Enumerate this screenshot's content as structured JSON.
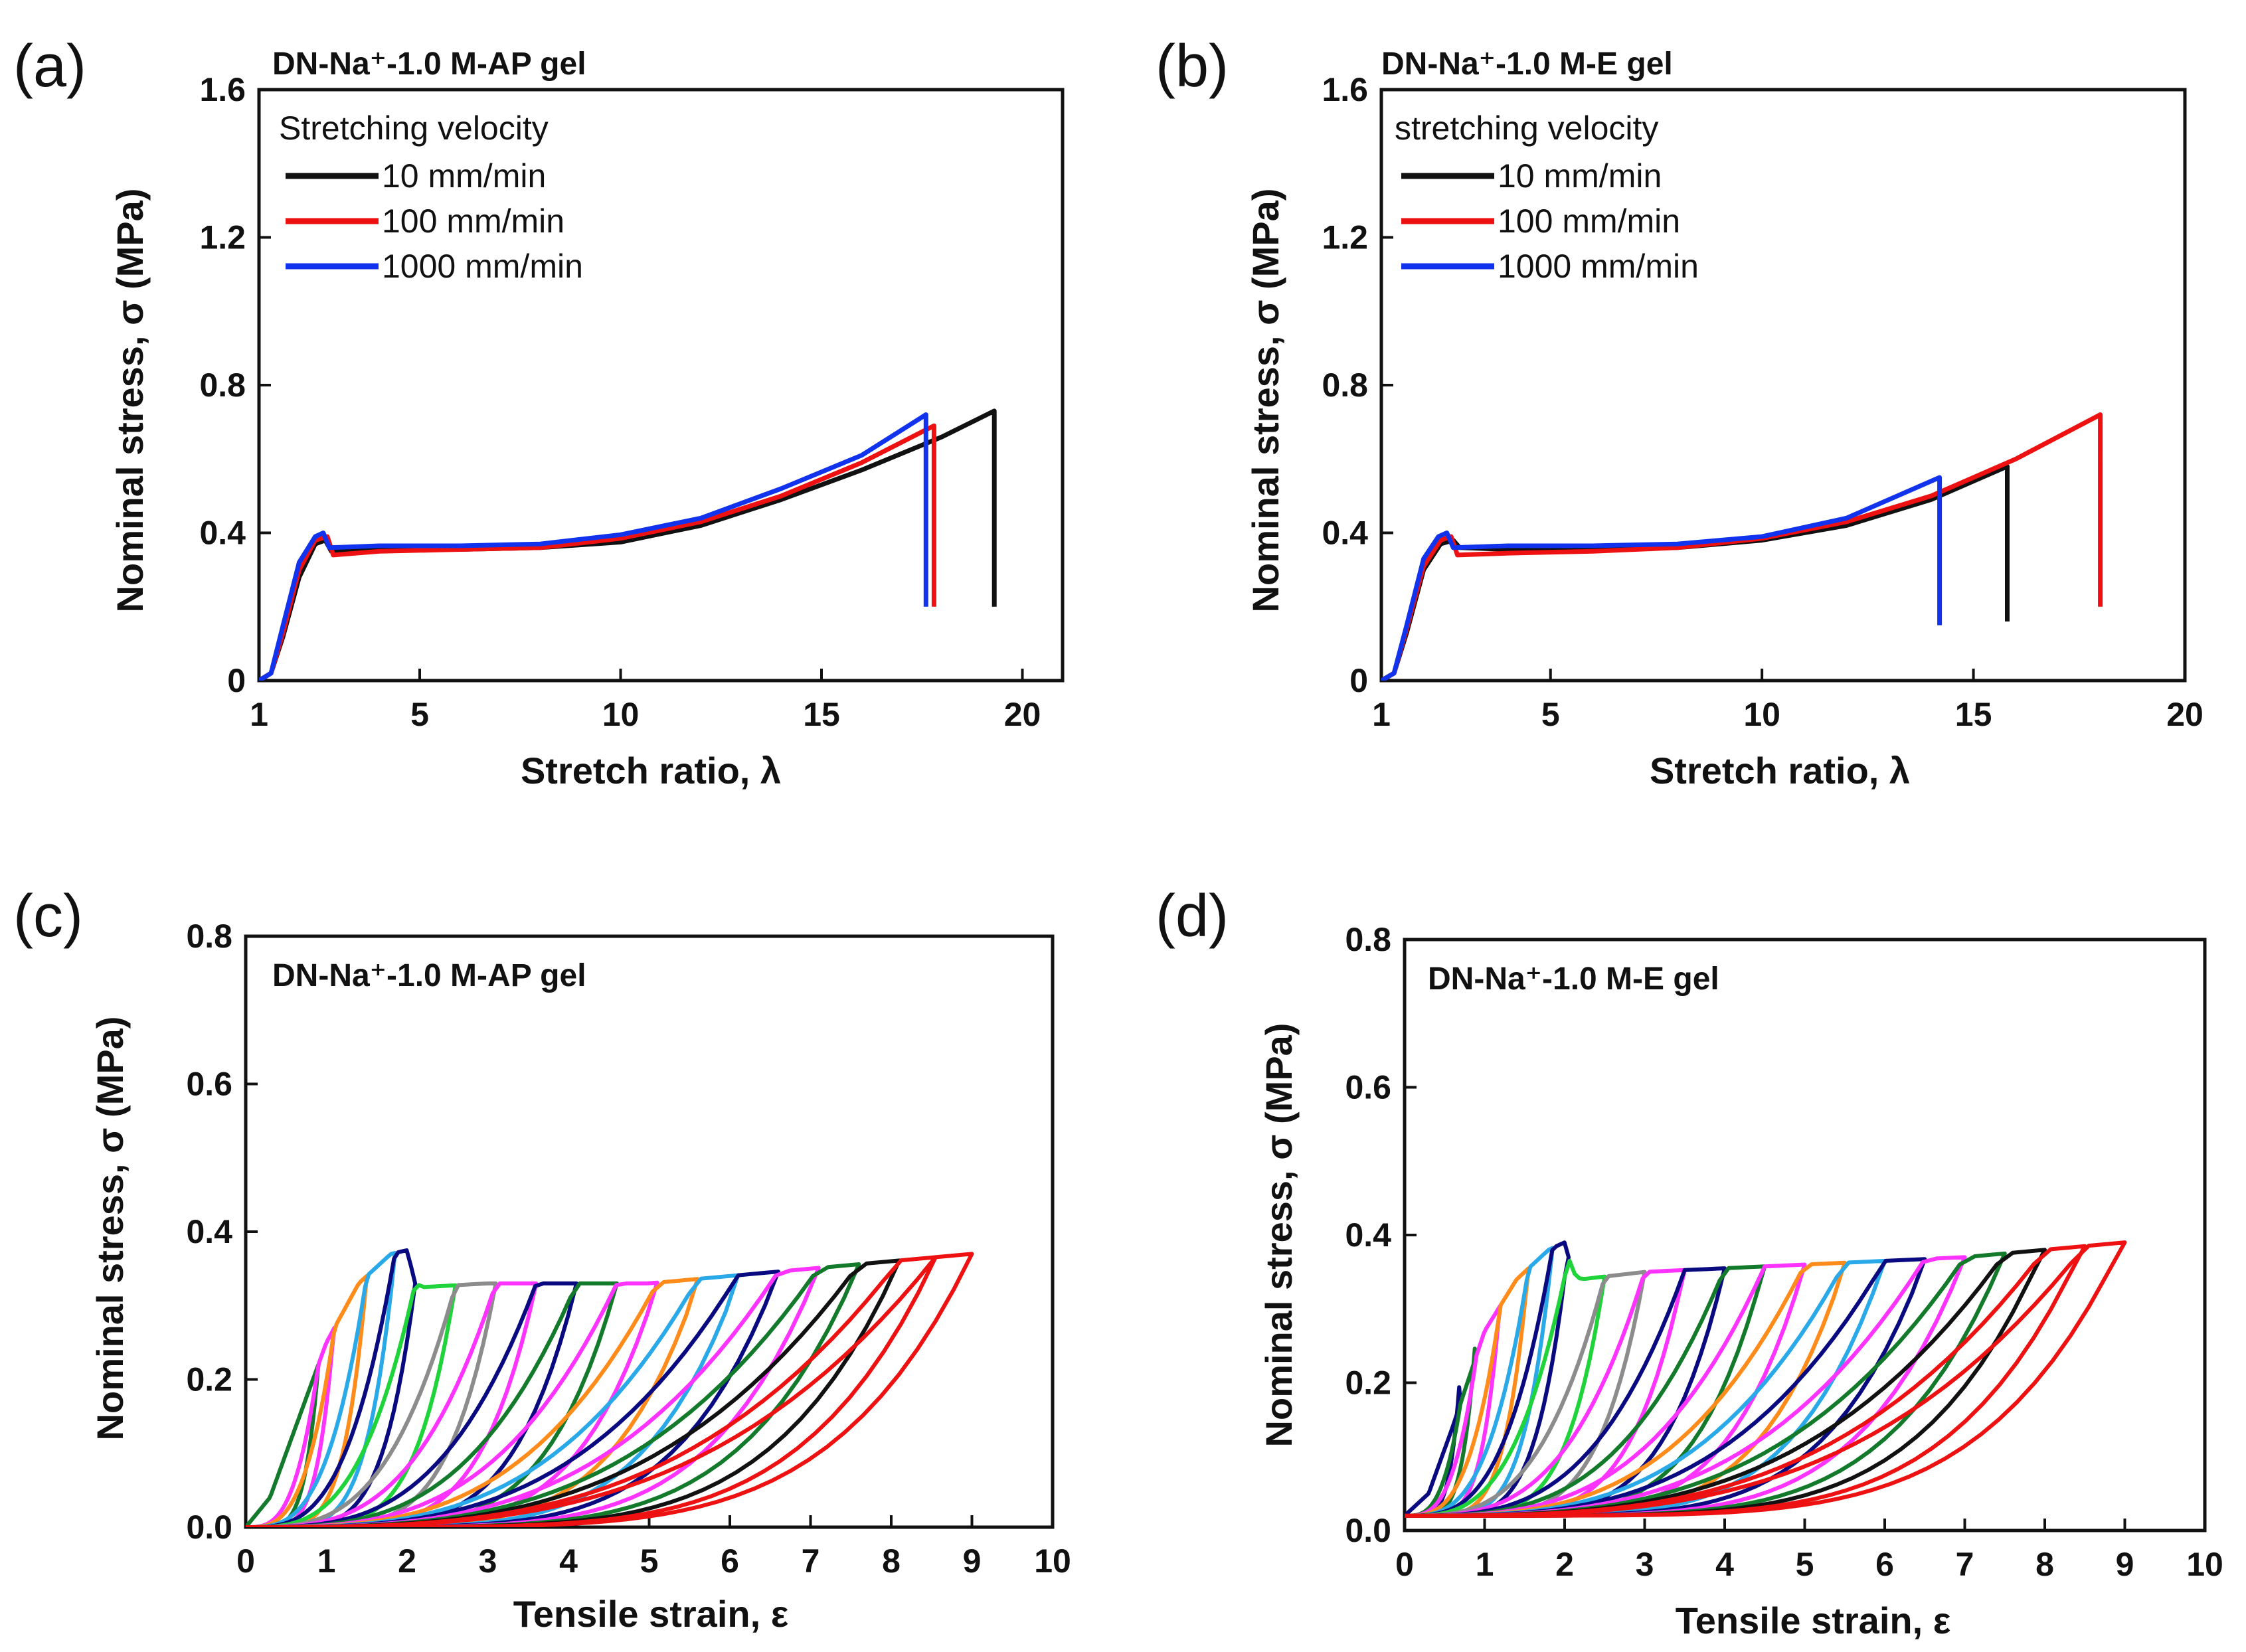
{
  "colors": {
    "black": "#111111",
    "red": "#ee1111",
    "blue": "#1133ee",
    "navy": "#0a0a80",
    "green": "#1fd33a",
    "gray": "#8c8c8c",
    "orange": "#ff8c1a",
    "skyblue": "#29a9e8",
    "magenta": "#ff33ff",
    "darkgreen": "#127a2a"
  },
  "chart_data": [
    {
      "panel": "(a)",
      "type": "line",
      "title": "DN-Na⁺-1.0 M-AP gel",
      "xlabel": "Stretch ratio, λ",
      "ylabel": "Nominal stress, σ (MPa)",
      "xlim": [
        1,
        21
      ],
      "ylim": [
        0,
        1.6
      ],
      "xticks": [
        1,
        5,
        10,
        15,
        20
      ],
      "xtick_labels": [
        "1",
        "5",
        "10",
        "15",
        "20"
      ],
      "yticks": [
        0,
        0.4,
        0.8,
        1.2,
        1.6
      ],
      "ytick_labels": [
        "0",
        "0.4",
        "0.8",
        "1.2",
        "1.6"
      ],
      "legend_title": "Stretching velocity",
      "legend_position": "top-left",
      "series": [
        {
          "name": "10 mm/min",
          "color": "black",
          "x": [
            1,
            1.3,
            1.6,
            2.0,
            2.4,
            2.65,
            2.8,
            4,
            6,
            8,
            10,
            12,
            14,
            16,
            18,
            19.3,
            19.3
          ],
          "y": [
            0,
            0.02,
            0.12,
            0.28,
            0.37,
            0.38,
            0.35,
            0.355,
            0.355,
            0.36,
            0.375,
            0.42,
            0.49,
            0.57,
            0.66,
            0.73,
            0.2
          ]
        },
        {
          "name": "100 mm/min",
          "color": "red",
          "x": [
            1,
            1.3,
            1.6,
            2.0,
            2.4,
            2.7,
            2.85,
            4,
            6,
            8,
            10,
            12,
            14,
            16,
            17.8,
            17.8
          ],
          "y": [
            0,
            0.02,
            0.13,
            0.3,
            0.38,
            0.39,
            0.34,
            0.35,
            0.355,
            0.36,
            0.385,
            0.43,
            0.5,
            0.59,
            0.69,
            0.2
          ]
        },
        {
          "name": "1000 mm/min",
          "color": "blue",
          "x": [
            1,
            1.3,
            1.6,
            2.0,
            2.4,
            2.6,
            2.75,
            4,
            6,
            8,
            10,
            12,
            14,
            16,
            17.6,
            17.6
          ],
          "y": [
            0,
            0.02,
            0.15,
            0.32,
            0.39,
            0.4,
            0.36,
            0.365,
            0.365,
            0.37,
            0.395,
            0.44,
            0.52,
            0.61,
            0.72,
            0.2
          ]
        }
      ]
    },
    {
      "panel": "(b)",
      "type": "line",
      "title": "DN-Na⁺-1.0 M-E gel",
      "xlabel": "Stretch ratio, λ",
      "ylabel": "Nominal stress, σ (MPa)",
      "xlim": [
        1,
        20
      ],
      "ylim": [
        0,
        1.6
      ],
      "xticks": [
        1,
        5,
        10,
        15,
        20
      ],
      "xtick_labels": [
        "1",
        "5",
        "10",
        "15",
        "20"
      ],
      "yticks": [
        0,
        0.4,
        0.8,
        1.2,
        1.6
      ],
      "ytick_labels": [
        "0",
        "0.4",
        "0.8",
        "1.2",
        "1.6"
      ],
      "legend_title": "stretching velocity",
      "legend_position": "top-left",
      "series": [
        {
          "name": "10 mm/min",
          "color": "black",
          "x": [
            1,
            1.3,
            1.6,
            2.0,
            2.4,
            2.7,
            2.85,
            4,
            6,
            8,
            10,
            12,
            14,
            15.8,
            15.8
          ],
          "y": [
            0,
            0.02,
            0.13,
            0.3,
            0.37,
            0.38,
            0.36,
            0.355,
            0.355,
            0.36,
            0.38,
            0.42,
            0.49,
            0.58,
            0.16
          ]
        },
        {
          "name": "100 mm/min",
          "color": "red",
          "x": [
            1,
            1.3,
            1.6,
            2.0,
            2.4,
            2.65,
            2.8,
            4,
            6,
            8,
            10,
            12,
            14,
            16,
            18,
            18
          ],
          "y": [
            0,
            0.02,
            0.14,
            0.31,
            0.38,
            0.39,
            0.34,
            0.345,
            0.35,
            0.36,
            0.385,
            0.43,
            0.5,
            0.6,
            0.72,
            0.2
          ]
        },
        {
          "name": "1000 mm/min",
          "color": "blue",
          "x": [
            1,
            1.3,
            1.6,
            2.0,
            2.35,
            2.55,
            2.7,
            4,
            6,
            8,
            10,
            12,
            14.2,
            14.2
          ],
          "y": [
            0,
            0.02,
            0.15,
            0.33,
            0.39,
            0.4,
            0.36,
            0.365,
            0.365,
            0.37,
            0.39,
            0.44,
            0.55,
            0.15
          ]
        }
      ]
    },
    {
      "panel": "(c)",
      "type": "line",
      "title": "DN-Na⁺-1.0 M-AP gel",
      "xlabel": "Tensile strain, ε",
      "ylabel": "Nominal stress, σ (MPa)",
      "xlim": [
        0,
        10
      ],
      "ylim": [
        0,
        0.8
      ],
      "xticks": [
        0,
        1,
        2,
        3,
        4,
        5,
        6,
        7,
        8,
        9,
        10
      ],
      "xtick_labels": [
        "0",
        "1",
        "2",
        "3",
        "4",
        "5",
        "6",
        "7",
        "8",
        "9",
        "10"
      ],
      "yticks": [
        0,
        0.2,
        0.4,
        0.6,
        0.8
      ],
      "ytick_labels": [
        "0.0",
        "0.2",
        "0.4",
        "0.6",
        "0.8"
      ],
      "description_series": "cyclic loading-unloading at increasing maximum strain",
      "loading_envelope": {
        "x": [
          0,
          0.3,
          0.6,
          1.0,
          1.4,
          1.8,
          2.0,
          2.1,
          2.2,
          3,
          4,
          5,
          6,
          7,
          8,
          9
        ],
        "y": [
          0,
          0.04,
          0.13,
          0.25,
          0.33,
          0.37,
          0.375,
          0.33,
          0.325,
          0.33,
          0.33,
          0.33,
          0.34,
          0.35,
          0.36,
          0.37
        ]
      },
      "cycles": [
        {
          "max_strain": 0.9,
          "max_stress": 0.22,
          "color": "darkgreen"
        },
        {
          "max_strain": 1.1,
          "max_stress": 0.28,
          "color": "magenta"
        },
        {
          "max_strain": 1.5,
          "max_stress": 0.34,
          "color": "orange"
        },
        {
          "max_strain": 1.85,
          "max_stress": 0.37,
          "color": "skyblue"
        },
        {
          "max_strain": 2.1,
          "max_stress": 0.33,
          "color": "navy"
        },
        {
          "max_strain": 2.6,
          "max_stress": 0.33,
          "color": "green"
        },
        {
          "max_strain": 3.1,
          "max_stress": 0.33,
          "color": "gray"
        },
        {
          "max_strain": 3.6,
          "max_stress": 0.33,
          "color": "magenta"
        },
        {
          "max_strain": 4.1,
          "max_stress": 0.33,
          "color": "navy"
        },
        {
          "max_strain": 4.6,
          "max_stress": 0.33,
          "color": "darkgreen"
        },
        {
          "max_strain": 5.1,
          "max_stress": 0.33,
          "color": "magenta"
        },
        {
          "max_strain": 5.6,
          "max_stress": 0.33,
          "color": "orange"
        },
        {
          "max_strain": 6.1,
          "max_stress": 0.335,
          "color": "skyblue"
        },
        {
          "max_strain": 6.6,
          "max_stress": 0.345,
          "color": "navy"
        },
        {
          "max_strain": 7.1,
          "max_stress": 0.35,
          "color": "magenta"
        },
        {
          "max_strain": 7.6,
          "max_stress": 0.355,
          "color": "darkgreen"
        },
        {
          "max_strain": 8.1,
          "max_stress": 0.36,
          "color": "black"
        },
        {
          "max_strain": 8.55,
          "max_stress": 0.365,
          "color": "red"
        },
        {
          "max_strain": 9.0,
          "max_stress": 0.37,
          "color": "red"
        }
      ]
    },
    {
      "panel": "(d)",
      "type": "line",
      "title": "DN-Na⁺-1.0 M-E gel",
      "xlabel": "Tensile strain, ε",
      "ylabel": "Nominal stress, σ (MPa)",
      "xlim": [
        0,
        10
      ],
      "ylim": [
        0,
        0.8
      ],
      "xticks": [
        0,
        1,
        2,
        3,
        4,
        5,
        6,
        7,
        8,
        9,
        10
      ],
      "xtick_labels": [
        "0",
        "1",
        "2",
        "3",
        "4",
        "5",
        "6",
        "7",
        "8",
        "9",
        "10"
      ],
      "yticks": [
        0,
        0.2,
        0.4,
        0.6,
        0.8
      ],
      "ytick_labels": [
        "0.0",
        "0.2",
        "0.4",
        "0.6",
        "0.8"
      ],
      "description_series": "cyclic loading-unloading at increasing maximum strain",
      "loading_envelope": {
        "x": [
          0,
          0.3,
          0.6,
          1.0,
          1.4,
          1.8,
          2.0,
          2.1,
          2.2,
          3,
          4,
          5,
          6,
          7,
          8,
          9
        ],
        "y": [
          0.02,
          0.05,
          0.14,
          0.27,
          0.34,
          0.38,
          0.39,
          0.35,
          0.34,
          0.35,
          0.355,
          0.36,
          0.365,
          0.37,
          0.38,
          0.39
        ]
      },
      "cycles": [
        {
          "max_strain": 0.7,
          "max_stress": 0.22,
          "color": "navy"
        },
        {
          "max_strain": 0.9,
          "max_stress": 0.28,
          "color": "darkgreen"
        },
        {
          "max_strain": 1.2,
          "max_stress": 0.32,
          "color": "magenta"
        },
        {
          "max_strain": 1.55,
          "max_stress": 0.36,
          "color": "orange"
        },
        {
          "max_strain": 1.85,
          "max_stress": 0.385,
          "color": "skyblue"
        },
        {
          "max_strain": 2.05,
          "max_stress": 0.39,
          "color": "navy"
        },
        {
          "max_strain": 2.5,
          "max_stress": 0.345,
          "color": "green"
        },
        {
          "max_strain": 3.0,
          "max_stress": 0.35,
          "color": "gray"
        },
        {
          "max_strain": 3.5,
          "max_stress": 0.355,
          "color": "magenta"
        },
        {
          "max_strain": 4.0,
          "max_stress": 0.355,
          "color": "navy"
        },
        {
          "max_strain": 4.5,
          "max_stress": 0.36,
          "color": "darkgreen"
        },
        {
          "max_strain": 5.0,
          "max_stress": 0.36,
          "color": "magenta"
        },
        {
          "max_strain": 5.5,
          "max_stress": 0.36,
          "color": "orange"
        },
        {
          "max_strain": 6.0,
          "max_stress": 0.365,
          "color": "skyblue"
        },
        {
          "max_strain": 6.5,
          "max_stress": 0.365,
          "color": "navy"
        },
        {
          "max_strain": 7.0,
          "max_stress": 0.37,
          "color": "magenta"
        },
        {
          "max_strain": 7.5,
          "max_stress": 0.375,
          "color": "darkgreen"
        },
        {
          "max_strain": 8.0,
          "max_stress": 0.385,
          "color": "black"
        },
        {
          "max_strain": 8.5,
          "max_stress": 0.39,
          "color": "red"
        },
        {
          "max_strain": 9.0,
          "max_stress": 0.395,
          "color": "red"
        }
      ]
    }
  ]
}
